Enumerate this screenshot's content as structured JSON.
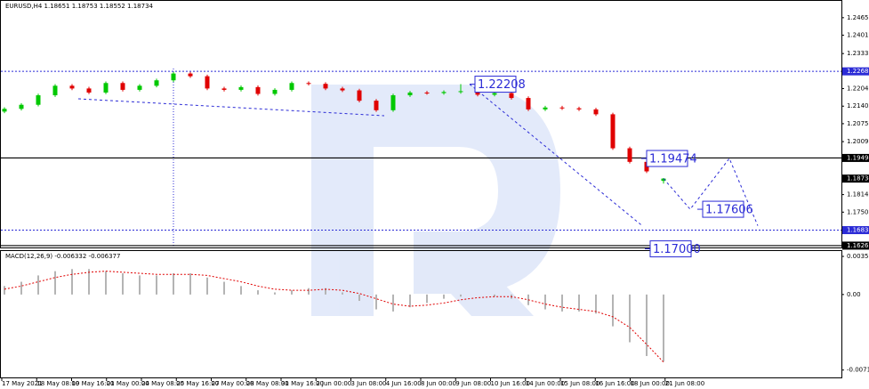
{
  "chart_data": {
    "type": "candlestick",
    "title": "EURUSD,H4  1.18651 1.18753 1.18552 1.18734",
    "ylim": [
      1.162,
      1.2524
    ],
    "yticks": [
      1.24655,
      {
        "value": 1.2401,
        "label": "1.24010"
      },
      1.23335,
      1.22045,
      {
        "value": 1.214,
        "label": "1.21400"
      },
      1.20755,
      1.20095,
      1.18145,
      {
        "value": 1.175,
        "label": "1.17500"
      }
    ],
    "levels": [
      {
        "value": 1.2268,
        "label": "1.22680",
        "style": "dotted",
        "color": "#2b2bd6"
      },
      {
        "value": 1.19494,
        "label": 1.19494,
        "style": "solid",
        "color": "#000000"
      },
      {
        "value": 1.16838,
        "label": 1.16838,
        "style": "dotted",
        "color": "#2b2bd6"
      },
      {
        "value": 1.16268,
        "label": 1.16268,
        "style": "solid",
        "color": "#000000"
      }
    ],
    "up_color": "#00c800",
    "down_color": "#e00000",
    "x_labels": [
      "17 May 2021",
      "18 May 08:00",
      "19 May 16:00",
      "21 May 00:00",
      "24 May 08:00",
      "25 May 16:00",
      "27 May 00:00",
      "28 May 08:00",
      "31 May 16:00",
      "2 Jun 00:00",
      "3 Jun 08:00",
      "4 Jun 16:00",
      "8 Jun 00:00",
      "9 Jun 08:00",
      "10 Jun 16:00",
      "14 Jun 00:00",
      "15 Jun 08:00",
      "16 Jun 16:00",
      "18 Jun 00:00",
      "21 Jun 08:00"
    ],
    "candles": {
      "open": [
        1.212,
        1.213,
        1.2145,
        1.218,
        1.2215,
        1.2205,
        1.219,
        1.2225,
        1.22,
        1.2215,
        1.2235,
        1.226,
        1.225,
        1.2205,
        1.22,
        1.221,
        1.2185,
        1.22,
        1.2225,
        1.2222,
        1.2205,
        1.2198,
        1.216,
        1.2125,
        1.218,
        1.219,
        1.2188,
        1.2192,
        1.2195,
        1.2182,
        1.2188,
        1.217,
        1.2128,
        1.2135,
        1.2132,
        1.2128,
        1.211,
        1.1985,
        1.1935,
        1.18651
      ],
      "high": [
        1.2136,
        1.2151,
        1.2186,
        1.2221,
        1.2221,
        1.2211,
        1.2231,
        1.2231,
        1.2221,
        1.2241,
        1.2266,
        1.2266,
        1.2256,
        1.2211,
        1.2216,
        1.2216,
        1.2206,
        1.2231,
        1.2231,
        1.2228,
        1.2211,
        1.2204,
        1.2166,
        1.2186,
        1.2196,
        1.2196,
        1.2198,
        1.2221,
        1.2201,
        1.2194,
        1.2194,
        1.2176,
        1.2141,
        1.2141,
        1.2138,
        1.2134,
        1.2116,
        1.1991,
        1.1941,
        1.18753
      ],
      "low": [
        1.2114,
        1.2124,
        1.2139,
        1.2174,
        1.2199,
        1.2184,
        1.2184,
        1.2194,
        1.2194,
        1.2209,
        1.2229,
        1.2244,
        1.2199,
        1.2194,
        1.2194,
        1.2179,
        1.2179,
        1.2194,
        1.2216,
        1.2199,
        1.2192,
        1.2154,
        1.2119,
        1.2119,
        1.2174,
        1.2182,
        1.2182,
        1.2186,
        1.2176,
        1.2176,
        1.2164,
        1.2122,
        1.2122,
        1.2126,
        1.2122,
        1.2104,
        1.1979,
        1.1929,
        1.1894,
        1.18552
      ],
      "close": [
        1.213,
        1.2145,
        1.218,
        1.2215,
        1.2205,
        1.219,
        1.2225,
        1.22,
        1.2215,
        1.2235,
        1.226,
        1.225,
        1.2205,
        1.22,
        1.221,
        1.2185,
        1.22,
        1.2225,
        1.2222,
        1.2205,
        1.2198,
        1.216,
        1.2125,
        1.218,
        1.219,
        1.2188,
        1.2192,
        1.2195,
        1.2182,
        1.2188,
        1.217,
        1.2128,
        1.2135,
        1.2132,
        1.2128,
        1.211,
        1.1985,
        1.1935,
        1.19,
        1.18734
      ]
    },
    "target": 1.22208,
    "forecast": [
      1.17606,
      1.19474,
      {
        "value": 1.17,
        "label": "1.17000"
      }
    ],
    "forecast_color": "#2b2bd6",
    "macd": {
      "title": "MACD(12,26,9) -0.006332 -0.006377",
      "ylim": [
        -0.0079,
        0.0041
      ],
      "yticks": [
        0.003594,
        {
          "value": 0,
          "label": "0.00"
        },
        -0.00712
      ],
      "histogram": [
        0.0008,
        0.0012,
        0.0018,
        0.0022,
        0.0024,
        0.0024,
        0.0022,
        0.002,
        0.0018,
        0.0018,
        0.002,
        0.002,
        0.0016,
        0.0012,
        0.0008,
        0.0004,
        0.0002,
        0.0004,
        0.0006,
        0.0006,
        0.0002,
        -0.0006,
        -0.0014,
        -0.0016,
        -0.0012,
        -0.0008,
        -0.0004,
        -0.0002,
        0.0,
        -0.0002,
        -0.0004,
        -0.001,
        -0.0014,
        -0.0016,
        -0.0016,
        -0.0018,
        -0.003,
        -0.0045,
        -0.0058,
        -0.006332
      ],
      "signal": [
        0.0005,
        0.0008,
        0.0012,
        0.0016,
        0.0019,
        0.0021,
        0.0022,
        0.0021,
        0.002,
        0.0019,
        0.0019,
        0.0019,
        0.0018,
        0.0015,
        0.0012,
        0.0008,
        0.0005,
        0.0004,
        0.0004,
        0.0005,
        0.0004,
        0.0001,
        -0.0004,
        -0.0009,
        -0.0011,
        -0.001,
        -0.0008,
        -0.0005,
        -0.0003,
        -0.0002,
        -0.0002,
        -0.0005,
        -0.0009,
        -0.0012,
        -0.0014,
        -0.0016,
        -0.0021,
        -0.0031,
        -0.0047,
        -0.006377
      ],
      "histogram_color": "#b4b4b4",
      "signal_color": "#e00000"
    }
  }
}
